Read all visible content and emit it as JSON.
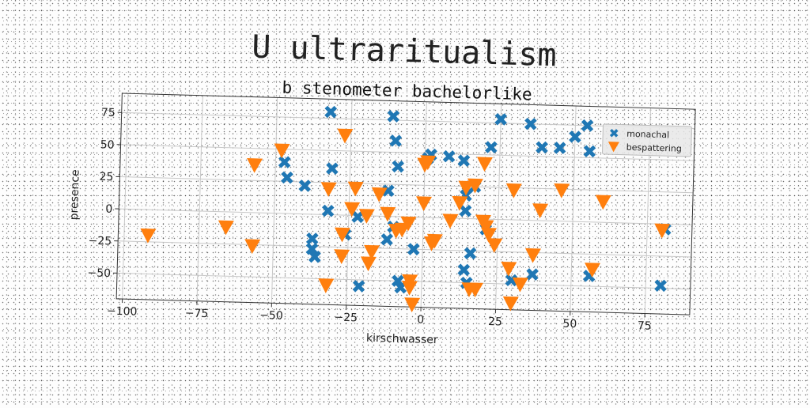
{
  "title": "U ultraritualism",
  "chart_data": {
    "type": "scatter",
    "title": "b stenometer bachelorlike",
    "xlabel": "kirschwasser",
    "ylabel": "presence",
    "xlim": [
      -102,
      90
    ],
    "ylim": [
      -70,
      90
    ],
    "xticks": [
      "−100",
      "−75",
      "−50",
      "−25",
      "0",
      "25",
      "50",
      "75"
    ],
    "xtick_values": [
      -100,
      -75,
      -50,
      -25,
      0,
      25,
      50,
      75
    ],
    "yticks": [
      "−50",
      "−25",
      "0",
      "25",
      "50",
      "75"
    ],
    "ytick_values": [
      -50,
      -25,
      0,
      25,
      50,
      75
    ],
    "grid": true,
    "legend_position": "top-right",
    "series": [
      {
        "name": "monachal",
        "color": "#1f77b4",
        "marker": "x",
        "x": [
          -32,
          -11,
          -10,
          -9,
          -47,
          -46,
          -40,
          -31,
          -32,
          -37,
          -37,
          -36,
          -26,
          -22,
          -12,
          -12,
          -21,
          -10,
          -7,
          -8,
          -3,
          1,
          2,
          8,
          13,
          14,
          17,
          14,
          14,
          15,
          16,
          21,
          22,
          25,
          30,
          35,
          37,
          39,
          45,
          50,
          54,
          55,
          56,
          80,
          81
        ],
        "y": [
          80,
          78,
          59,
          39,
          40,
          28,
          22,
          36,
          3,
          -19,
          -27,
          -33,
          -15,
          -1,
          20,
          -18,
          -55,
          -8,
          -55,
          -50,
          -25,
          46,
          49,
          48,
          45,
          18,
          25,
          6,
          -40,
          -50,
          -27,
          -8,
          56,
          78,
          -47,
          75,
          -42,
          57,
          57,
          66,
          75,
          55,
          -42,
          -48,
          -4
        ]
      },
      {
        "name": "bespattering",
        "color": "#ff7f0e",
        "marker": "v",
        "x": [
          -92,
          -66,
          -57,
          -57,
          -48,
          -32,
          -32,
          -27,
          -27,
          -27,
          -24,
          -23,
          -19,
          -18,
          -17,
          -15,
          -12,
          -9,
          -7,
          -5,
          -4,
          -4,
          -3,
          0,
          0,
          1,
          3,
          4,
          9,
          12,
          14,
          16,
          17,
          18,
          20,
          20,
          21,
          22,
          24,
          29,
          30,
          30,
          33,
          37,
          39,
          46,
          57,
          60,
          80
        ],
        "y": [
          -20,
          -12,
          -26,
          37,
          49,
          20,
          -55,
          -15,
          -32,
          62,
          5,
          21,
          0,
          -37,
          -28,
          17,
          2,
          -11,
          -10,
          -5,
          -55,
          -50,
          -68,
          41,
          11,
          43,
          -20,
          -18,
          -2,
          12,
          24,
          -55,
          26,
          -55,
          -2,
          43,
          -6,
          -12,
          -20,
          -38,
          -65,
          23,
          -50,
          -27,
          8,
          24,
          -37,
          16,
          -5
        ]
      }
    ]
  }
}
